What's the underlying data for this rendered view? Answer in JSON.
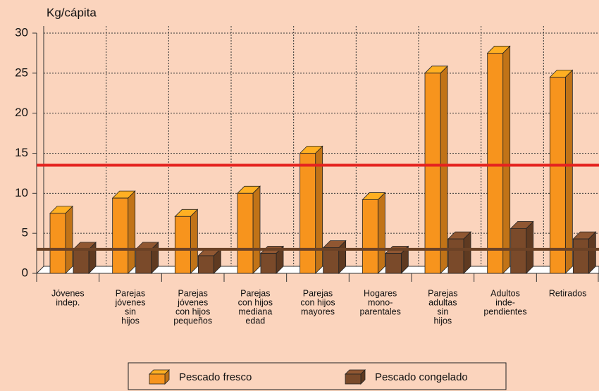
{
  "chart_data": {
    "type": "bar3d",
    "y_label": "Kg/cápita",
    "categories": [
      [
        "Jóvenes",
        "indep."
      ],
      [
        "Parejas",
        "jóvenes",
        "sin",
        "hijos"
      ],
      [
        "Parejas",
        "jóvenes",
        "con hijos",
        "pequeños"
      ],
      [
        "Parejas",
        "con hijos",
        "mediana",
        "edad"
      ],
      [
        "Parejas",
        "con hijos",
        "mayores"
      ],
      [
        "Hogares",
        "mono-",
        "parentales"
      ],
      [
        "Parejas",
        "adultas",
        "sin",
        "hijos"
      ],
      [
        "Adultos",
        "inde-",
        "pendientes"
      ],
      [
        "Retirados"
      ]
    ],
    "series": [
      {
        "name": "Pescado fresco",
        "color": "#f7941d",
        "values": [
          7.5,
          9.4,
          7.1,
          10,
          15,
          9.2,
          25,
          27.5,
          24.5
        ]
      },
      {
        "name": "Pescado congelado",
        "color": "#7a4a2a",
        "values": [
          3,
          3,
          2.2,
          2.5,
          3.2,
          2.5,
          4.3,
          5.6,
          4.3
        ]
      }
    ],
    "reference_lines": [
      {
        "value": 13.5,
        "color": "#e5231f"
      },
      {
        "value": 3,
        "color": "#6b4226"
      }
    ],
    "ylim": [
      0,
      30
    ],
    "yticks": [
      0,
      5,
      10,
      15,
      20,
      25,
      30
    ],
    "grid": true
  }
}
